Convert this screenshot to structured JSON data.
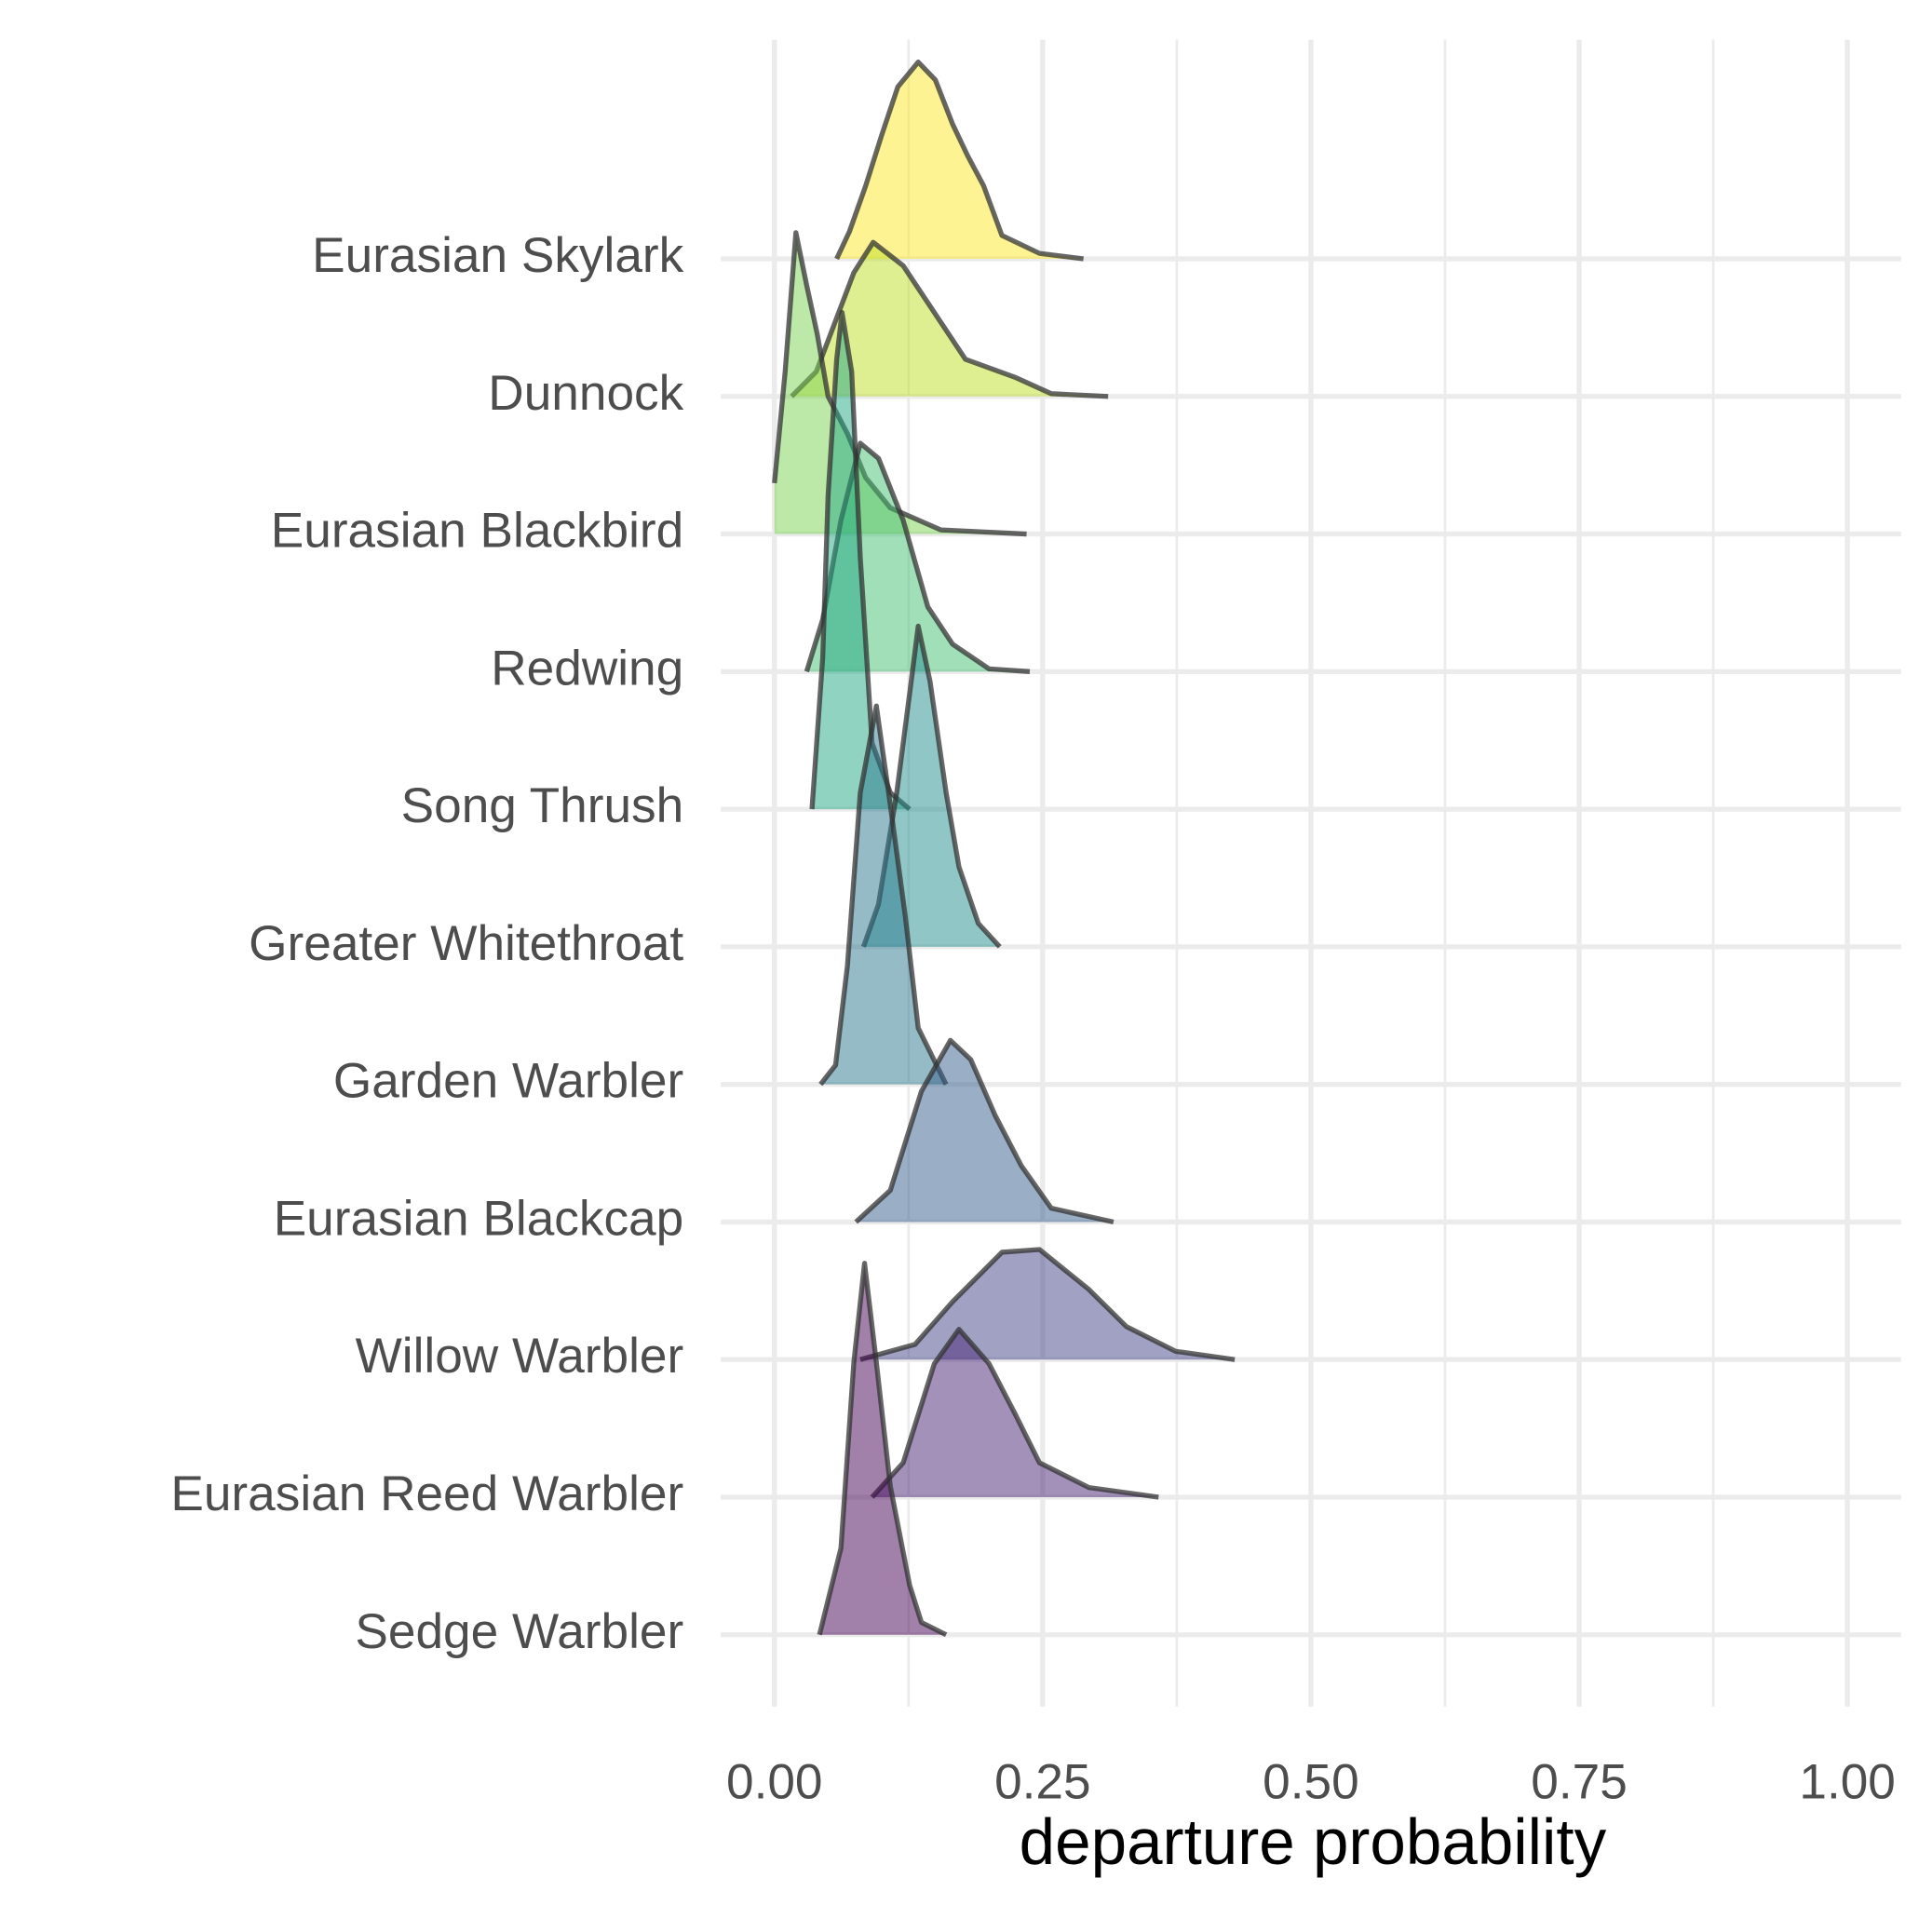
{
  "chart_data": {
    "type": "ridgeline",
    "x_label": "departure probability",
    "xlim": [
      -0.05,
      1.05
    ],
    "xticks": [
      {
        "value": 0,
        "label": "0.00"
      },
      {
        "value": 0.25,
        "label": "0.25"
      },
      {
        "value": 0.5,
        "label": "0.50"
      },
      {
        "value": 0.75,
        "label": "0.75"
      },
      {
        "value": 1,
        "label": "1.00"
      }
    ],
    "minor_xticks": [
      0.125,
      0.375,
      0.625,
      0.875
    ],
    "grid": true,
    "series": [
      {
        "name": "Eurasian Skylark",
        "color": "#fde725",
        "x": [
          0.058,
          0.07,
          0.085,
          0.1,
          0.115,
          0.134,
          0.15,
          0.166,
          0.18,
          0.195,
          0.212,
          0.247,
          0.288
        ],
        "values": [
          0,
          0.2,
          0.53,
          0.9,
          1.25,
          1.43,
          1.3,
          0.98,
          0.75,
          0.53,
          0.17,
          0.04,
          0
        ]
      },
      {
        "name": "Dunnock",
        "color": "#bddf26",
        "x": [
          0.016,
          0.039,
          0.074,
          0.092,
          0.12,
          0.155,
          0.178,
          0.224,
          0.258,
          0.311
        ],
        "values": [
          0,
          0.18,
          0.9,
          1.12,
          0.95,
          0.54,
          0.27,
          0.14,
          0.02,
          0
        ]
      },
      {
        "name": "Eurasian Blackbird",
        "color": "#7ad151",
        "x": [
          0,
          0.01,
          0.02,
          0.03,
          0.04,
          0.05,
          0.068,
          0.085,
          0.108,
          0.155,
          0.235
        ],
        "values": [
          0.37,
          1.18,
          2.19,
          1.81,
          1.45,
          1.0,
          0.73,
          0.41,
          0.19,
          0.03,
          0
        ]
      },
      {
        "name": "Redwing",
        "color": "#43bf71",
        "x": [
          0.03,
          0.045,
          0.062,
          0.08,
          0.097,
          0.12,
          0.143,
          0.166,
          0.2,
          0.238
        ],
        "values": [
          0,
          0.38,
          1.1,
          1.66,
          1.55,
          1.1,
          0.47,
          0.2,
          0.02,
          0
        ]
      },
      {
        "name": "Song Thrush",
        "color": "#22a884",
        "x": [
          0.035,
          0.045,
          0.05,
          0.058,
          0.063,
          0.072,
          0.08,
          0.091,
          0.108,
          0.126
        ],
        "values": [
          0,
          1.1,
          2.28,
          3.27,
          3.61,
          3.18,
          1.83,
          0.48,
          0.12,
          0
        ]
      },
      {
        "name": "Greater Whitethroat",
        "color": "#21908d",
        "x": [
          0.083,
          0.097,
          0.114,
          0.126,
          0.134,
          0.145,
          0.16,
          0.172,
          0.19,
          0.21
        ],
        "values": [
          0,
          0.31,
          1.12,
          1.84,
          2.33,
          1.93,
          1.12,
          0.58,
          0.17,
          0
        ]
      },
      {
        "name": "Garden Warbler",
        "color": "#2a788e",
        "x": [
          0.043,
          0.057,
          0.068,
          0.08,
          0.095,
          0.108,
          0.122,
          0.134,
          0.16
        ],
        "values": [
          0,
          0.14,
          0.86,
          2.12,
          2.75,
          2.03,
          1.22,
          0.41,
          0
        ]
      },
      {
        "name": "Eurasian Blackcap",
        "color": "#355f8d",
        "x": [
          0.076,
          0.108,
          0.137,
          0.164,
          0.183,
          0.206,
          0.23,
          0.258,
          0.316
        ],
        "values": [
          0,
          0.23,
          0.95,
          1.32,
          1.18,
          0.77,
          0.41,
          0.1,
          0
        ]
      },
      {
        "name": "Willow Warbler",
        "color": "#414487",
        "x": [
          0.08,
          0.131,
          0.166,
          0.212,
          0.247,
          0.293,
          0.328,
          0.374,
          0.429
        ],
        "values": [
          0,
          0.11,
          0.42,
          0.78,
          0.8,
          0.51,
          0.24,
          0.06,
          0
        ]
      },
      {
        "name": "Eurasian Reed Warbler",
        "color": "#482475",
        "x": [
          0.091,
          0.12,
          0.149,
          0.172,
          0.2,
          0.224,
          0.247,
          0.293,
          0.358
        ],
        "values": [
          0,
          0.25,
          0.97,
          1.22,
          0.97,
          0.61,
          0.25,
          0.07,
          0
        ]
      },
      {
        "name": "Sedge Warbler",
        "color": "#440154",
        "x": [
          0.042,
          0.062,
          0.074,
          0.084,
          0.095,
          0.108,
          0.126,
          0.137,
          0.16
        ],
        "values": [
          0,
          0.63,
          1.98,
          2.7,
          1.98,
          1.08,
          0.36,
          0.09,
          0
        ]
      }
    ]
  }
}
